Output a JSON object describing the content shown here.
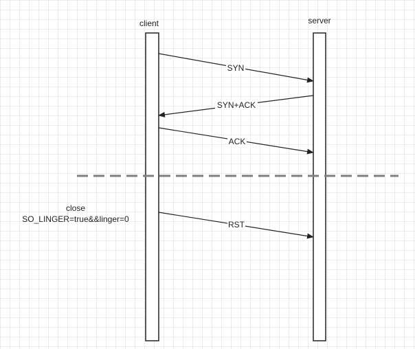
{
  "participants": {
    "client": {
      "label": "client"
    },
    "server": {
      "label": "server"
    }
  },
  "messages": [
    {
      "id": "syn",
      "label": "SYN",
      "from": "client",
      "to": "server"
    },
    {
      "id": "syn-ack",
      "label": "SYN+ACK",
      "from": "server",
      "to": "client"
    },
    {
      "id": "ack",
      "label": "ACK",
      "from": "client",
      "to": "server"
    },
    {
      "id": "rst",
      "label": "RST",
      "from": "client",
      "to": "server"
    }
  ],
  "note": {
    "line1": "close",
    "line2": "SO_LINGER=true&&linger=0"
  },
  "colors": {
    "line": "#222222",
    "divider": "#808080",
    "grid": "#ececec"
  }
}
